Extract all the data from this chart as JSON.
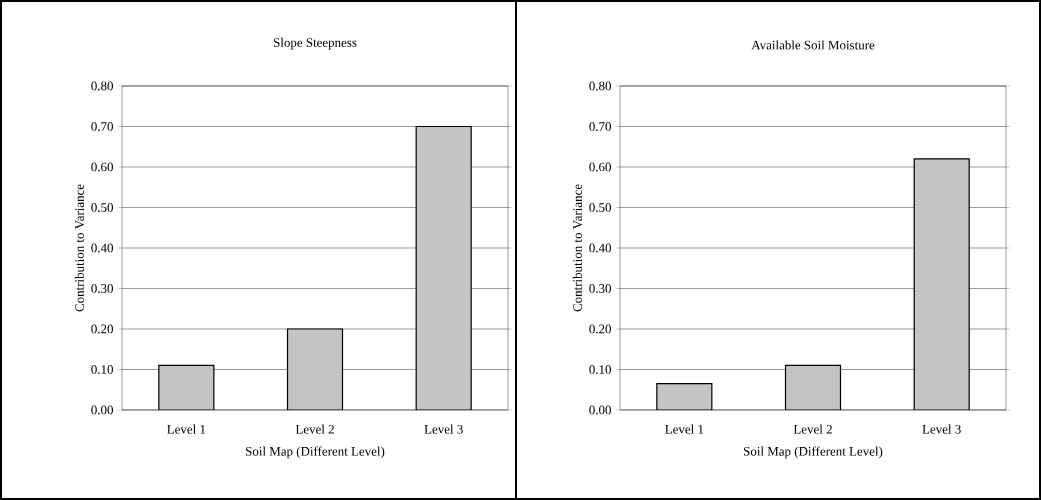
{
  "chart_data": [
    {
      "type": "bar",
      "title": "Slope Steepness",
      "xlabel": "Soil Map (Different Level)",
      "ylabel": "Contribution to Variance",
      "categories": [
        "Level 1",
        "Level 2",
        "Level 3"
      ],
      "values": [
        0.11,
        0.2,
        0.7
      ],
      "color": "#c4c4c4",
      "ylim": [
        0,
        0.8
      ],
      "grid": "y",
      "yticks": [
        {
          "value": 0,
          "label": "0.00"
        },
        {
          "value": 0.1,
          "label": "0.10"
        },
        {
          "value": 0.2,
          "label": "0.20"
        },
        {
          "value": 0.3,
          "label": "0.30"
        },
        {
          "value": 0.4,
          "label": "0.40"
        },
        {
          "value": 0.5,
          "label": "0.50"
        },
        {
          "value": 0.6,
          "label": "0.60"
        },
        {
          "value": 0.7,
          "label": "0.70"
        },
        {
          "value": 0.8,
          "label": "0.80"
        }
      ]
    },
    {
      "type": "bar",
      "title": "Available Soil Moisture",
      "xlabel": "Soil Map (Different Level)",
      "ylabel": "Contribution to Variance",
      "categories": [
        "Level 1",
        "Level 2",
        "Level 3"
      ],
      "values": [
        0.065,
        0.11,
        0.62
      ],
      "color": "#c4c4c4",
      "ylim": [
        0,
        0.8
      ],
      "grid": "y",
      "yticks": [
        {
          "value": 0,
          "label": "0.00"
        },
        {
          "value": 0.1,
          "label": "0.10"
        },
        {
          "value": 0.2,
          "label": "0.20"
        },
        {
          "value": 0.3,
          "label": "0.30"
        },
        {
          "value": 0.4,
          "label": "0.40"
        },
        {
          "value": 0.5,
          "label": "0.50"
        },
        {
          "value": 0.6,
          "label": "0.60"
        },
        {
          "value": 0.7,
          "label": "0.70"
        },
        {
          "value": 0.8,
          "label": "0.80"
        }
      ]
    }
  ]
}
